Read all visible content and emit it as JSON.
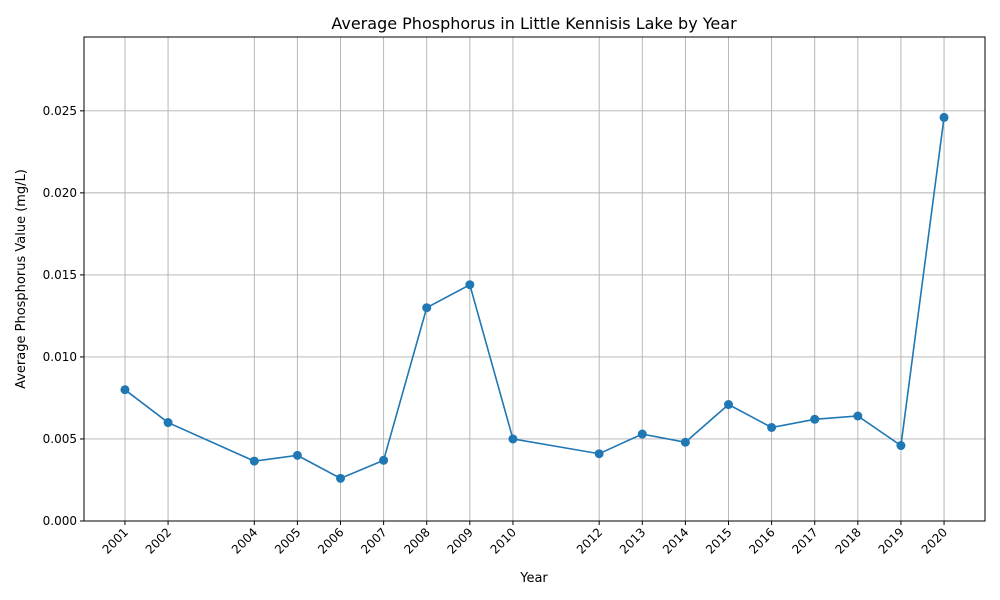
{
  "chart_data": {
    "type": "line",
    "title": "Average Phosphorus in Little Kennisis Lake by Year",
    "xlabel": "Year",
    "ylabel": "Average Phosphorus Value (mg/L)",
    "x": [
      2001,
      2002,
      2004,
      2005,
      2006,
      2007,
      2008,
      2009,
      2010,
      2012,
      2013,
      2014,
      2015,
      2016,
      2017,
      2018,
      2019,
      2020
    ],
    "series": [
      {
        "values": [
          0.008,
          0.006,
          0.00365,
          0.004,
          0.0026,
          0.0037,
          0.013,
          0.0144,
          0.005,
          0.0041,
          0.0053,
          0.0048,
          0.0071,
          0.0057,
          0.0062,
          0.0064,
          0.0046,
          0.0246
        ],
        "color": "#1f77b4"
      }
    ],
    "xticks": [
      "2001",
      "2002",
      "2004",
      "2005",
      "2006",
      "2007",
      "2008",
      "2009",
      "2010",
      "2012",
      "2013",
      "2014",
      "2015",
      "2016",
      "2017",
      "2018",
      "2019",
      "2020"
    ],
    "yticks": [
      "0.000",
      "0.005",
      "0.010",
      "0.015",
      "0.020",
      "0.025"
    ],
    "ylim": [
      0,
      0.0295
    ],
    "xlim": [
      2000.05,
      2020.95
    ],
    "grid": true
  }
}
